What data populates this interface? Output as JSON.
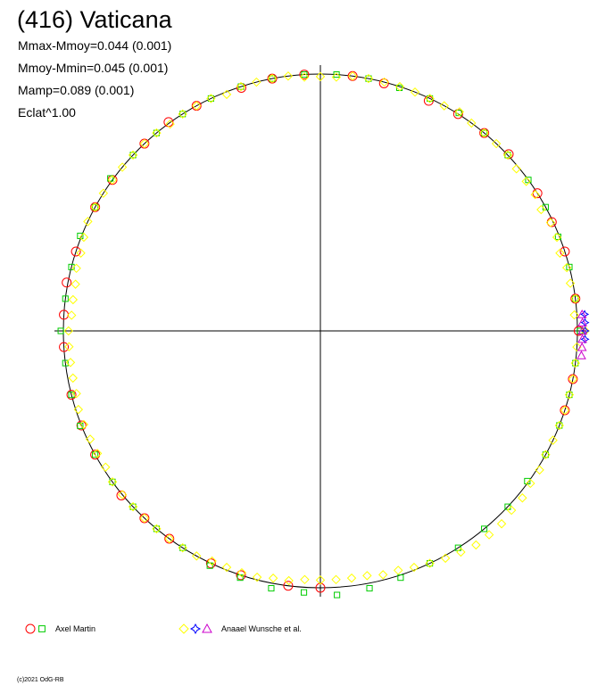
{
  "title": "(416) Vaticana",
  "stats": [
    "Mmax-Mmoy=0.044 (0.001)",
    "Mmoy-Mmin=0.045 (0.001)",
    "Mamp=0.089 (0.001)",
    "Eclat^1.00"
  ],
  "legend": [
    {
      "label": "Axel Martin",
      "symbols": [
        "circle",
        "square"
      ],
      "colors": [
        "#ff0000",
        "#00cc00"
      ]
    },
    {
      "label": "Anaael Wunsche et al.",
      "symbols": [
        "diamond",
        "star",
        "triangle"
      ],
      "colors": [
        "#ffff00",
        "#0000ff",
        "#cc00cc"
      ]
    }
  ],
  "copyright": "(c)2021 OdG-RB",
  "chart_data": {
    "type": "scatter",
    "coordinate_system": "polar",
    "reference_circle": true,
    "axes": "crosshair",
    "series": [
      {
        "name": "Axel Martin",
        "marker": "circle",
        "color": "#ff0000",
        "phase": [
          0.0,
          0.02,
          0.05,
          0.07,
          0.09,
          0.12,
          0.14,
          0.16,
          0.18,
          0.21,
          0.23,
          0.26,
          0.28,
          0.3,
          0.33,
          0.35,
          0.37,
          0.4,
          0.42,
          0.45,
          0.47,
          0.49,
          0.51,
          0.54,
          0.56,
          0.58,
          0.61,
          0.63,
          0.65,
          0.68,
          0.7,
          0.73,
          0.75,
          0.95,
          0.97
        ],
        "radius": [
          1.005,
          1.0,
          1.0,
          0.995,
          1.0,
          1.005,
          1.0,
          1.0,
          0.99,
          0.995,
          1.0,
          1.0,
          1.0,
          0.995,
          1.0,
          1.005,
          1.0,
          1.0,
          1.0,
          1.0,
          1.005,
          1.0,
          1.0,
          1.0,
          1.0,
          1.0,
          1.005,
          1.0,
          1.0,
          1.0,
          1.0,
          1.0,
          1.0,
          1.0,
          1.0
        ]
      },
      {
        "name": "Axel Martin",
        "marker": "square",
        "color": "#00cc00",
        "phase": [
          0.0,
          0.02,
          0.04,
          0.06,
          0.08,
          0.1,
          0.12,
          0.14,
          0.16,
          0.18,
          0.2,
          0.22,
          0.24,
          0.26,
          0.28,
          0.3,
          0.32,
          0.34,
          0.36,
          0.38,
          0.4,
          0.42,
          0.44,
          0.46,
          0.48,
          0.5,
          0.52,
          0.54,
          0.56,
          0.58,
          0.6,
          0.62,
          0.64,
          0.66,
          0.68,
          0.7,
          0.72,
          0.74,
          0.76,
          0.78,
          0.8,
          0.82,
          0.84,
          0.86,
          0.88,
          0.9,
          0.92,
          0.94,
          0.96,
          0.98
        ],
        "radius": [
          1.01,
          1.0,
          1.0,
          0.995,
          1.0,
          1.0,
          1.0,
          1.0,
          1.005,
          1.0,
          0.995,
          1.0,
          1.0,
          1.0,
          1.0,
          1.0,
          1.0,
          1.0,
          1.0,
          1.0,
          1.01,
          1.0,
          1.005,
          1.0,
          1.0,
          1.01,
          1.0,
          1.0,
          1.005,
          1.0,
          1.0,
          1.0,
          1.0,
          1.0,
          1.01,
          1.01,
          1.02,
          1.02,
          1.03,
          1.02,
          1.01,
          1.0,
          1.0,
          1.0,
          1.0,
          0.995,
          1.0,
          1.0,
          1.0,
          1.0
        ]
      },
      {
        "name": "Anaael Wunsche et al.",
        "marker": "diamond",
        "color": "#ffff00",
        "phase": [
          0.0,
          0.01,
          0.02,
          0.03,
          0.04,
          0.05,
          0.06,
          0.07,
          0.08,
          0.09,
          0.1,
          0.11,
          0.12,
          0.13,
          0.14,
          0.15,
          0.16,
          0.17,
          0.18,
          0.19,
          0.2,
          0.21,
          0.22,
          0.23,
          0.24,
          0.25,
          0.26,
          0.27,
          0.28,
          0.29,
          0.3,
          0.31,
          0.32,
          0.33,
          0.34,
          0.35,
          0.36,
          0.37,
          0.38,
          0.39,
          0.4,
          0.41,
          0.42,
          0.43,
          0.44,
          0.45,
          0.46,
          0.47,
          0.48,
          0.49,
          0.5,
          0.51,
          0.52,
          0.53,
          0.54,
          0.55,
          0.56,
          0.57,
          0.58,
          0.59,
          0.6,
          0.61,
          0.62,
          0.63,
          0.64,
          0.65,
          0.66,
          0.67,
          0.68,
          0.69,
          0.7,
          0.71,
          0.72,
          0.73,
          0.74,
          0.75,
          0.76,
          0.77,
          0.78,
          0.79,
          0.8,
          0.81,
          0.82,
          0.83,
          0.84,
          0.85,
          0.86,
          0.87,
          0.88,
          0.89,
          0.9,
          0.91,
          0.92,
          0.93,
          0.94,
          0.95,
          0.96,
          0.97,
          0.98,
          0.99
        ],
        "radius": [
          1.03,
          0.99,
          1.0,
          0.99,
          0.99,
          0.98,
          0.99,
          0.99,
          0.98,
          0.99,
          0.99,
          0.99,
          1.0,
          1.0,
          1.0,
          1.0,
          1.01,
          1.0,
          1.0,
          1.0,
          1.0,
          1.0,
          1.0,
          1.0,
          0.99,
          0.99,
          0.99,
          1.0,
          1.0,
          1.0,
          1.0,
          0.99,
          1.0,
          1.0,
          1.0,
          0.995,
          1.0,
          1.0,
          1.0,
          1.0,
          1.0,
          1.0,
          1.0,
          1.0,
          0.99,
          0.98,
          0.98,
          0.97,
          0.97,
          0.97,
          0.98,
          0.98,
          0.98,
          0.98,
          0.98,
          0.99,
          0.99,
          0.99,
          0.99,
          0.99,
          1.0,
          1.0,
          1.0,
          1.0,
          1.0,
          1.0,
          1.0,
          1.0,
          0.99,
          0.99,
          0.99,
          0.99,
          0.98,
          0.98,
          0.97,
          0.97,
          0.97,
          0.97,
          0.97,
          0.98,
          0.98,
          0.99,
          1.0,
          1.01,
          1.02,
          1.03,
          1.03,
          1.03,
          1.02,
          1.02,
          1.01,
          1.01,
          1.0,
          1.0,
          1.0,
          1.0,
          1.0,
          1.0,
          1.0,
          1.0
        ]
      },
      {
        "name": "Anaael Wunsche et al.",
        "marker": "star",
        "color": "#0000ff",
        "phase": [
          0.995,
          0.0,
          0.005,
          0.01
        ],
        "radius": [
          1.03,
          1.03,
          1.03,
          1.03
        ]
      },
      {
        "name": "Anaael Wunsche et al.",
        "marker": "triangle",
        "color": "#cc00cc",
        "phase": [
          0.985,
          0.99,
          0.995,
          0.0,
          0.005,
          0.01
        ],
        "radius": [
          1.02,
          1.02,
          1.02,
          1.02,
          1.02,
          1.02
        ]
      }
    ]
  }
}
